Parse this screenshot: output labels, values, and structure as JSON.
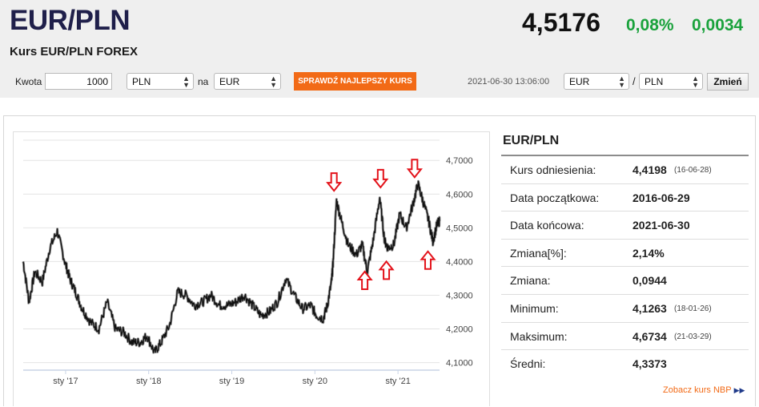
{
  "header": {
    "pair": "EUR/PLN",
    "subtitle": "Kurs EUR/PLN FOREX",
    "rate": "4,5176",
    "change_pct": "0,08%",
    "change_abs": "0,0034"
  },
  "converter": {
    "amount_label": "Kwota",
    "amount_value": "1000",
    "from_currency": "PLN",
    "to_label": "na",
    "to_currency": "EUR",
    "best_rate_button": "SPRAWDŹ NAJLEPSZY KURS",
    "timestamp": "2021-06-30 13:06:00",
    "pair_base": "EUR",
    "pair_separator": "/",
    "pair_quote": "PLN",
    "change_button": "Zmień"
  },
  "stats": {
    "title": "EUR/PLN",
    "rows": [
      {
        "label": "Kurs odniesienia:",
        "value": "4,4198",
        "date": "(16-06-28)"
      },
      {
        "label": "Data początkowa:",
        "value": "2016-06-29",
        "date": ""
      },
      {
        "label": "Data końcowa:",
        "value": "2021-06-30",
        "date": ""
      },
      {
        "label": "Zmiana[%]:",
        "value": "2,14%",
        "date": ""
      },
      {
        "label": "Zmiana:",
        "value": "0,0944",
        "date": ""
      },
      {
        "label": "Minimum:",
        "value": "4,1263",
        "date": "(18-01-26)"
      },
      {
        "label": "Maksimum:",
        "value": "4,6734",
        "date": "(21-03-29)"
      },
      {
        "label": "Średni:",
        "value": "4,3373",
        "date": ""
      }
    ],
    "nbp_link": "Zobacz kurs NBP",
    "nbp_link_icon": "double-chevron-right-icon"
  },
  "chart_data": {
    "type": "line",
    "x_tick_labels": [
      "sty '17",
      "sty '18",
      "sty '19",
      "sty '20",
      "sty '21"
    ],
    "y_tick_labels": [
      "4,7000",
      "4,6000",
      "4,5000",
      "4,4000",
      "4,3000",
      "4,2000",
      "4,1000"
    ],
    "ylim": [
      4.08,
      4.76
    ],
    "xlim": [
      2016.49,
      2021.5
    ],
    "grid": true,
    "series": [
      {
        "x": [
          2016.49,
          2016.56,
          2016.63,
          2016.72,
          2016.81,
          2016.9,
          2016.99,
          2017.05,
          2017.12,
          2017.2,
          2017.3,
          2017.4,
          2017.5,
          2017.6,
          2017.7,
          2017.8,
          2017.9,
          2017.98,
          2018.07,
          2018.15,
          2018.25,
          2018.35,
          2018.45,
          2018.55,
          2018.65,
          2018.75,
          2018.85,
          2018.95,
          2019.05,
          2019.15,
          2019.25,
          2019.35,
          2019.45,
          2019.55,
          2019.65,
          2019.75,
          2019.85,
          2019.95,
          2020.02,
          2020.1,
          2020.15,
          2020.2,
          2020.22,
          2020.26,
          2020.32,
          2020.4,
          2020.5,
          2020.57,
          2020.63,
          2020.7,
          2020.78,
          2020.84,
          2020.88,
          2020.95,
          2021.02,
          2021.1,
          2021.18,
          2021.24,
          2021.3,
          2021.37,
          2021.42,
          2021.47,
          2021.5
        ],
        "y": [
          4.4,
          4.28,
          4.37,
          4.34,
          4.44,
          4.49,
          4.4,
          4.35,
          4.31,
          4.26,
          4.22,
          4.2,
          4.28,
          4.2,
          4.19,
          4.16,
          4.16,
          4.18,
          4.13,
          4.16,
          4.21,
          4.31,
          4.3,
          4.27,
          4.28,
          4.3,
          4.27,
          4.27,
          4.28,
          4.3,
          4.27,
          4.24,
          4.25,
          4.28,
          4.35,
          4.3,
          4.26,
          4.27,
          4.24,
          4.23,
          4.27,
          4.34,
          4.4,
          4.58,
          4.52,
          4.45,
          4.42,
          4.45,
          4.37,
          4.46,
          4.59,
          4.46,
          4.44,
          4.45,
          4.54,
          4.5,
          4.57,
          4.63,
          4.58,
          4.52,
          4.46,
          4.51,
          4.52
        ]
      }
    ],
    "markers": [
      {
        "direction": "down",
        "x": 2020.23,
        "y": 4.61
      },
      {
        "direction": "down",
        "x": 2020.79,
        "y": 4.62
      },
      {
        "direction": "down",
        "x": 2021.2,
        "y": 4.65
      },
      {
        "direction": "up",
        "x": 2020.6,
        "y": 4.37
      },
      {
        "direction": "up",
        "x": 2020.86,
        "y": 4.4
      },
      {
        "direction": "up",
        "x": 2021.36,
        "y": 4.43
      }
    ],
    "marker_color": "#e3131b"
  }
}
